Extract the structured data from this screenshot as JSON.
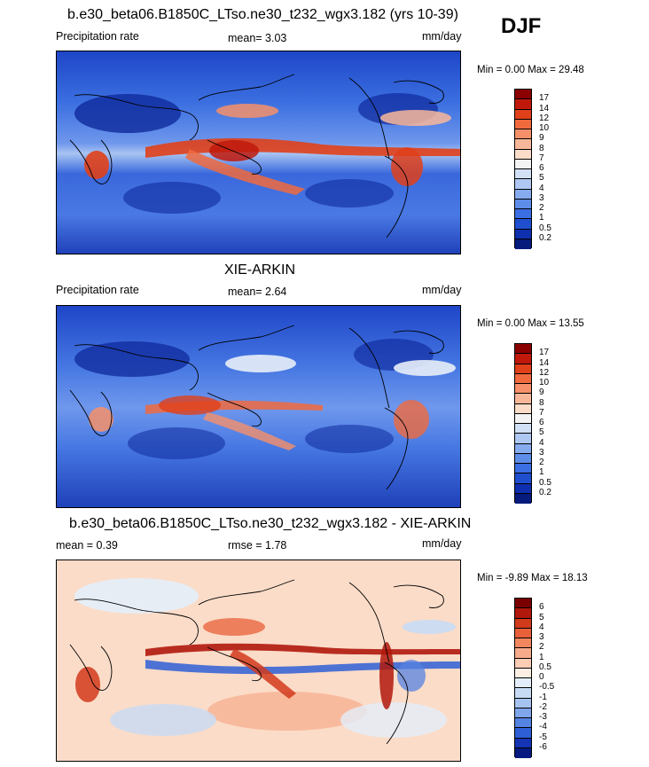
{
  "season": "DJF",
  "panels": [
    {
      "id": "model",
      "title": "b.e30_beta06.B1850C_LTso.ne30_t232_wgx3.182 (yrs 10-39)",
      "left_label": "Precipitation rate",
      "mean_text": "mean=   3.03",
      "rmse_text": "",
      "units": "mm/day",
      "minmax": "Min =   0.00 Max =  29.48",
      "colorbar_levels": [
        "17",
        "14",
        "12",
        "10",
        "9",
        "8",
        "7",
        "6",
        "5",
        "4",
        "3",
        "2",
        "1",
        "0.5",
        "0.2"
      ],
      "colorbar_colors": [
        "#8b0000",
        "#c0190c",
        "#e0401a",
        "#f06a3e",
        "#f6906a",
        "#f9b79a",
        "#fbdcc8",
        "#f3f3f3",
        "#d2e0f6",
        "#aec8f3",
        "#86abef",
        "#5e8de9",
        "#3a6ee3",
        "#1f4fcf",
        "#0e2fae",
        "#071b7c"
      ]
    },
    {
      "id": "obs",
      "title": "XIE-ARKIN",
      "left_label": "Precipitation rate",
      "mean_text": "mean=   2.64",
      "rmse_text": "",
      "units": "mm/day",
      "minmax": "Min =   0.00 Max =  13.55",
      "colorbar_levels": [
        "17",
        "14",
        "12",
        "10",
        "9",
        "8",
        "7",
        "6",
        "5",
        "4",
        "3",
        "2",
        "1",
        "0.5",
        "0.2"
      ],
      "colorbar_colors": [
        "#8b0000",
        "#c0190c",
        "#e0401a",
        "#f06a3e",
        "#f6906a",
        "#f9b79a",
        "#fbdcc8",
        "#f3f3f3",
        "#d2e0f6",
        "#aec8f3",
        "#86abef",
        "#5e8de9",
        "#3a6ee3",
        "#1f4fcf",
        "#0e2fae",
        "#071b7c"
      ]
    },
    {
      "id": "diff",
      "title": "b.e30_beta06.B1850C_LTso.ne30_t232_wgx3.182 - XIE-ARKIN",
      "left_label": "mean =   0.39",
      "mean_text": "rmse =   1.78",
      "rmse_text": "",
      "units": "mm/day",
      "minmax": "Min =  -9.89 Max =  18.13",
      "colorbar_levels": [
        "6",
        "5",
        "4",
        "3",
        "2",
        "1",
        "0.5",
        "0",
        "-0.5",
        "-1",
        "-2",
        "-3",
        "-4",
        "-5",
        "-6"
      ],
      "colorbar_colors": [
        "#7a0000",
        "#b0180c",
        "#d23a1c",
        "#e8603a",
        "#f2875f",
        "#f7ab8a",
        "#fbcdb5",
        "#fdeee3",
        "#e4eefa",
        "#c8dbf5",
        "#a6c3f0",
        "#7fa5ea",
        "#5583e2",
        "#2e5fd6",
        "#1434b4",
        "#061a80"
      ]
    }
  ]
}
